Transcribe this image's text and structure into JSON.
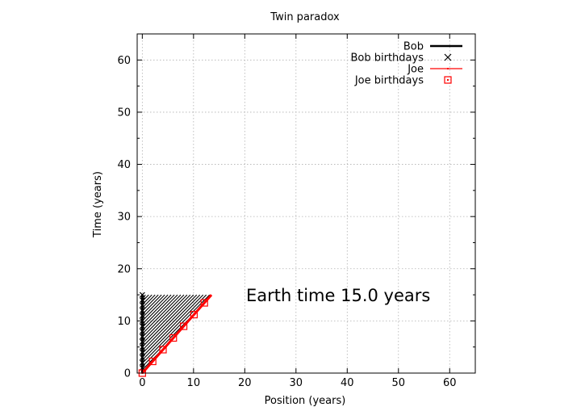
{
  "chart_data": {
    "type": "line",
    "title": "Twin paradox",
    "xlabel": "Position (years)",
    "ylabel": "Time (years)",
    "xlim": [
      -1,
      65
    ],
    "ylim": [
      0,
      65
    ],
    "xticks": [
      0,
      10,
      20,
      30,
      40,
      50,
      60
    ],
    "yticks": [
      0,
      10,
      20,
      30,
      40,
      50,
      60
    ],
    "grid": true,
    "legend_position": "top-right",
    "annotation": "Earth time 15.0 years",
    "colors": {
      "bob": "#000000",
      "joe": "#ff0000",
      "grid": "#b0b0b0"
    },
    "series": [
      {
        "name": "Bob",
        "kind": "line",
        "color": "#000000",
        "x": [
          0,
          0
        ],
        "y": [
          0,
          15
        ]
      },
      {
        "name": "Bob birthdays",
        "kind": "marker-x",
        "color": "#000000",
        "x": [
          0,
          0,
          0,
          0,
          0,
          0,
          0,
          0,
          0,
          0,
          0,
          0,
          0,
          0,
          0
        ],
        "y": [
          1,
          2,
          3,
          4,
          5,
          6,
          7,
          8,
          9,
          10,
          11,
          12,
          13,
          14,
          15
        ]
      },
      {
        "name": "Joe",
        "kind": "line",
        "color": "#ff0000",
        "x": [
          0,
          13.5
        ],
        "y": [
          0,
          15
        ]
      },
      {
        "name": "Joe birthdays",
        "kind": "marker-square",
        "color": "#ff0000",
        "x": [
          0,
          2.02,
          4.04,
          6.05,
          8.07,
          10.09,
          12.11
        ],
        "y": [
          0,
          2.24,
          4.49,
          6.73,
          8.97,
          11.21,
          13.46
        ]
      }
    ],
    "light_signals": {
      "description_visible": false,
      "from_x": 0,
      "to_line": "Joe",
      "y_top": 15,
      "count": 25
    }
  }
}
